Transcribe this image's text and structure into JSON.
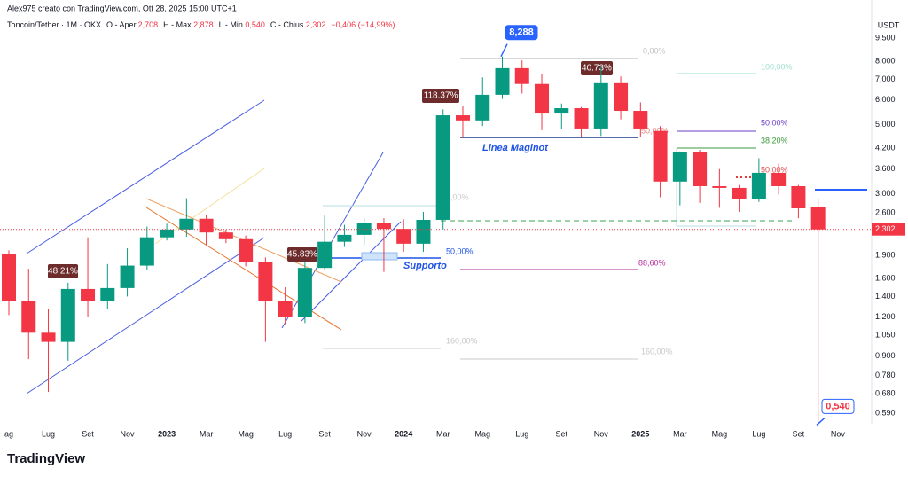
{
  "header": {
    "author": "Alex975 creato con TradingView.com, Ott 28, 2025 15:00 UTC+1",
    "logo": "TradingView"
  },
  "chart_data": {
    "type": "candlestick",
    "legend": {
      "symbol": "Toncoin/Tether · 1M · OKX",
      "items": [
        {
          "name": "O - Aper.",
          "value": "2,708"
        },
        {
          "name": "H - Max.",
          "value": "2,878"
        },
        {
          "name": "L - Min.",
          "value": "0,540"
        },
        {
          "name": "C - Chius.",
          "value": "2,302"
        }
      ],
      "change": "−0,406 (−14,99%)"
    },
    "y_unit": "USDT",
    "log_scale": true,
    "grid": false,
    "up_color": "#089981",
    "down_color": "#f23645",
    "categories": [
      "ag",
      null,
      "Lug",
      null,
      "Set",
      null,
      "Nov",
      null,
      "2023",
      null,
      "Mar",
      null,
      "Mag",
      null,
      "Lug",
      null,
      "Set",
      null,
      "Nov",
      null,
      "2024",
      null,
      "Mar",
      null,
      "Mag",
      null,
      "Lug",
      null,
      "Set",
      null,
      "Nov",
      null,
      "2025",
      null,
      "Mar",
      null,
      "Mag",
      null,
      "Lug",
      null,
      "Set",
      null,
      "Nov"
    ],
    "open": [
      1.92,
      1.35,
      1.07,
      1.0,
      1.48,
      1.35,
      1.49,
      1.76,
      2.17,
      2.3,
      2.49,
      2.25,
      2.14,
      1.81,
      1.35,
      1.2,
      1.73,
      2.1,
      2.21,
      2.41,
      2.31,
      2.07,
      2.47,
      5.36,
      5.16,
      6.24,
      7.6,
      6.76,
      5.43,
      5.65,
      4.86,
      6.8,
      5.54,
      4.77,
      3.28,
      4.07,
      3.17,
      3.13,
      2.89,
      3.5,
      3.17,
      2.708,
      null
    ],
    "high": [
      1.97,
      1.72,
      1.28,
      1.55,
      2.17,
      1.78,
      2.0,
      2.35,
      2.4,
      2.9,
      2.56,
      2.3,
      2.2,
      1.87,
      1.5,
      1.8,
      2.55,
      2.38,
      2.5,
      2.5,
      2.48,
      2.62,
      5.6,
      5.75,
      7.1,
      8.288,
      8.05,
      7.3,
      5.85,
      5.7,
      7.7,
      7.15,
      5.9,
      4.95,
      4.1,
      4.15,
      3.6,
      3.2,
      3.9,
      3.75,
      3.2,
      2.878,
      null
    ],
    "low": [
      1.22,
      0.88,
      0.69,
      0.87,
      1.2,
      1.28,
      1.4,
      1.7,
      2.12,
      2.18,
      2.05,
      2.08,
      1.75,
      1.0,
      1.14,
      1.15,
      1.7,
      2.02,
      2.05,
      1.68,
      1.95,
      1.95,
      2.3,
      4.55,
      4.95,
      6.05,
      6.3,
      4.8,
      4.85,
      4.55,
      4.6,
      5.2,
      4.55,
      2.92,
      2.75,
      2.8,
      2.7,
      2.62,
      2.82,
      2.98,
      2.5,
      0.54,
      null
    ],
    "close": [
      1.35,
      1.07,
      1.0,
      1.48,
      1.35,
      1.49,
      1.76,
      2.17,
      2.3,
      2.49,
      2.25,
      2.14,
      1.81,
      1.35,
      1.2,
      1.73,
      2.1,
      2.21,
      2.41,
      2.31,
      2.07,
      2.47,
      5.36,
      5.16,
      6.24,
      7.6,
      6.76,
      5.43,
      5.65,
      4.86,
      6.8,
      5.54,
      4.86,
      3.28,
      4.07,
      3.17,
      3.13,
      2.89,
      3.5,
      3.17,
      2.69,
      2.302,
      null
    ],
    "ylim": [
      0.545,
      11.95
    ],
    "yticks": [
      {
        "value": 9.5,
        "label": "9,500"
      },
      {
        "value": 8,
        "label": "8,000"
      },
      {
        "value": 7,
        "label": "7,000"
      },
      {
        "value": 6,
        "label": "6,000"
      },
      {
        "value": 5,
        "label": "5,000"
      },
      {
        "value": 4.2,
        "label": "4,200"
      },
      {
        "value": 3.6,
        "label": "3,600"
      },
      {
        "value": 3,
        "label": "3,000"
      },
      {
        "value": 2.6,
        "label": "2,600"
      },
      {
        "value": 1.9,
        "label": "1,900"
      },
      {
        "value": 1.6,
        "label": "1,600"
      },
      {
        "value": 1.4,
        "label": "1,400"
      },
      {
        "value": 1.2,
        "label": "1,200"
      },
      {
        "value": 1.05,
        "label": "1,050"
      },
      {
        "value": 0.9,
        "label": "0,900"
      },
      {
        "value": 0.78,
        "label": "0,780"
      },
      {
        "value": 0.68,
        "label": "0,680"
      },
      {
        "value": 0.59,
        "label": "0,590"
      }
    ],
    "price_callouts": [
      {
        "value": 8.288,
        "label": "8,288"
      },
      {
        "value": 0.54,
        "label": "0,540"
      }
    ],
    "annotations": {
      "gains": [
        "48.21%",
        "45.83%",
        "118.37%",
        "40.73%"
      ],
      "lines": [
        "Linea Maginot",
        "Supporto"
      ],
      "fib": [
        "0,00%",
        "100,00%",
        "50,00%",
        "38,20%",
        "50,00%",
        "88,60%",
        "50,00%",
        "160,00%",
        "160,00%",
        "0,00%",
        "50,00%"
      ]
    }
  }
}
